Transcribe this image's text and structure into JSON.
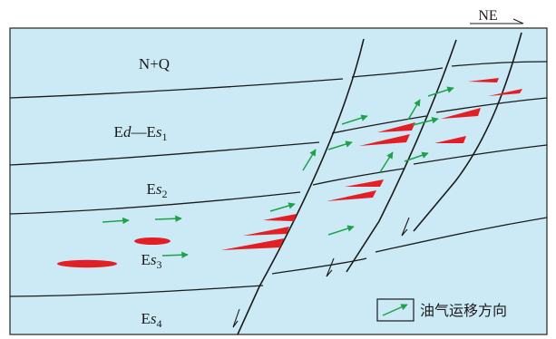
{
  "direction": {
    "label": "NE"
  },
  "layers": [
    {
      "id": "nq",
      "parts": [
        {
          "t": "N+Q",
          "style": "normal",
          "sub": false
        }
      ]
    },
    {
      "id": "edes1",
      "parts": [
        {
          "t": "E",
          "style": "normal",
          "sub": false
        },
        {
          "t": "d",
          "style": "italic",
          "sub": false
        },
        {
          "t": "—E",
          "style": "normal",
          "sub": false
        },
        {
          "t": "s",
          "style": "italic",
          "sub": false
        },
        {
          "t": "1",
          "style": "normal",
          "sub": true
        }
      ]
    },
    {
      "id": "es2",
      "parts": [
        {
          "t": "E",
          "style": "normal",
          "sub": false
        },
        {
          "t": "s",
          "style": "italic",
          "sub": false
        },
        {
          "t": "2",
          "style": "normal",
          "sub": true
        }
      ]
    },
    {
      "id": "es3",
      "parts": [
        {
          "t": "E",
          "style": "normal",
          "sub": false
        },
        {
          "t": "s",
          "style": "italic",
          "sub": false
        },
        {
          "t": "3",
          "style": "normal",
          "sub": true
        }
      ]
    },
    {
      "id": "es4",
      "parts": [
        {
          "t": "E",
          "style": "normal",
          "sub": false
        },
        {
          "t": "s",
          "style": "italic",
          "sub": false
        },
        {
          "t": "4",
          "style": "normal",
          "sub": true
        }
      ]
    }
  ],
  "legend": {
    "label": "油气运移方向"
  },
  "colors": {
    "background": "#cbeaf6",
    "line": "#1a1a1a",
    "reservoir": "#e31e24",
    "migration_arrow": "#1fa14a",
    "frame": "#222222"
  }
}
